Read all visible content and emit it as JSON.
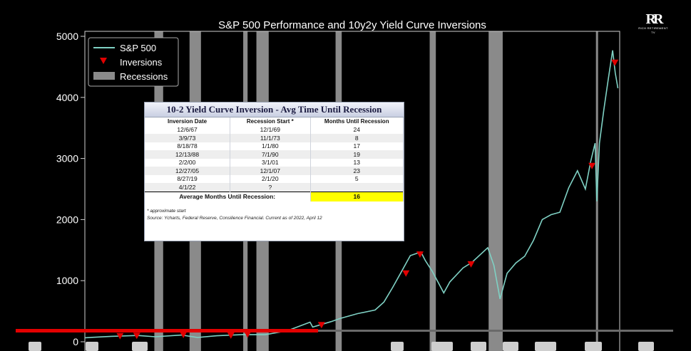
{
  "chart_data": {
    "type": "line",
    "title": "S&P 500 Performance and 10y2y Yield Curve Inversions",
    "xlabel": "",
    "ylabel": "",
    "x_range": [
      1962.0,
      2022.8
    ],
    "ylim": [
      0,
      5000
    ],
    "y_ticks": [
      0,
      1000,
      2000,
      3000,
      4000,
      5000
    ],
    "grid": false,
    "legend_position": "top-left",
    "legend": [
      "S&P 500",
      "Inversions",
      "Recessions"
    ],
    "colors": {
      "line": "#7fd1c4",
      "inversion": "#e00000",
      "recession": "#8a8a8a",
      "highlight": "#ffff00"
    },
    "series": [
      {
        "name": "S&P 500",
        "x": [
          1962,
          1965,
          1968,
          1970,
          1973,
          1974.8,
          1977,
          1980,
          1982.5,
          1985,
          1987.6,
          1987.9,
          1990,
          1991,
          1993,
          1995,
          1996,
          1997,
          1998,
          1999,
          2000.2,
          2000.7,
          2001.5,
          2002.8,
          2003.5,
          2005,
          2006,
          2007.8,
          2008.5,
          2009.2,
          2010,
          2011,
          2012,
          2013,
          2014,
          2015,
          2016,
          2017,
          2018,
          2018.9,
          2019.5,
          2020.0,
          2020.2,
          2020.5,
          2021,
          2021.5,
          2022.0,
          2022.3,
          2022.6
        ],
        "values": [
          65,
          88,
          102,
          82,
          110,
          70,
          98,
          118,
          115,
          180,
          320,
          240,
          330,
          380,
          460,
          520,
          650,
          890,
          1150,
          1410,
          1470,
          1330,
          1150,
          800,
          980,
          1210,
          1300,
          1540,
          1250,
          700,
          1120,
          1290,
          1400,
          1660,
          2000,
          2080,
          2120,
          2520,
          2800,
          2500,
          2950,
          3250,
          2300,
          3250,
          3800,
          4300,
          4770,
          4400,
          4150
        ]
      },
      {
        "name": "Inversions",
        "x": [
          1966,
          1967.9,
          1973.2,
          1978.6,
          1980.5,
          1988.9,
          1998.5,
          2000.1,
          2005.9,
          2019.65,
          2022.25
        ],
        "values": [
          85,
          90,
          105,
          95,
          110,
          265,
          1110,
          1420,
          1260,
          2870,
          4560
        ]
      }
    ],
    "recessions": [
      [
        1969.9,
        1970.9
      ],
      [
        1973.9,
        1975.2
      ],
      [
        1980.0,
        1980.5
      ],
      [
        1981.5,
        1982.9
      ],
      [
        1990.5,
        1991.2
      ],
      [
        2001.2,
        2001.9
      ],
      [
        2007.9,
        2009.5
      ],
      [
        2020.1,
        2020.3
      ]
    ],
    "table": {
      "title": "10-2 Yield Curve Inversion - Avg Time Until Recession",
      "headers": [
        "Inversion Date",
        "Recession Start *",
        "Months Until Recession"
      ],
      "rows": [
        [
          "12/6/67",
          "12/1/69",
          "24"
        ],
        [
          "3/9/73",
          "11/1/73",
          "8"
        ],
        [
          "8/18/78",
          "1/1/80",
          "17"
        ],
        [
          "12/13/88",
          "7/1/90",
          "19"
        ],
        [
          "2/2/00",
          "3/1/01",
          "13"
        ],
        [
          "12/27/05",
          "12/1/07",
          "23"
        ],
        [
          "8/27/19",
          "2/1/20",
          "5"
        ],
        [
          "4/1/22",
          "?",
          ""
        ]
      ],
      "average_label": "Average Months Until Recession:",
      "average_value": "16",
      "note": "* approximate start",
      "source": "Source: Ycharts, Federal Reserve, Consilience Financial. Current as of 2022, April 12"
    }
  },
  "logo": {
    "mark": "RR",
    "text": "RICH RETIREMENT TV"
  },
  "player": {
    "progress": 0.46
  }
}
